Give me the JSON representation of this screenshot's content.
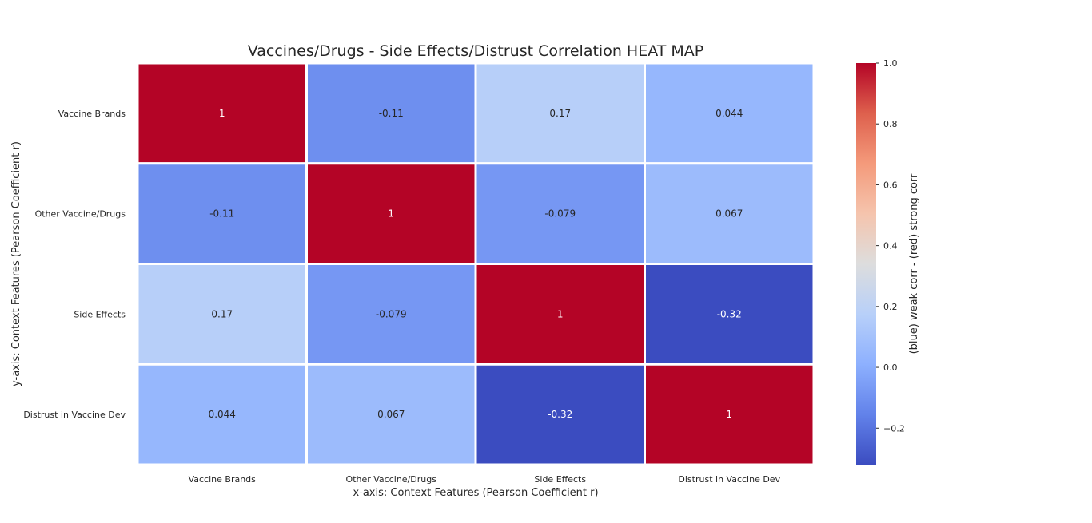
{
  "chart_data": {
    "type": "heatmap",
    "title": "Vaccines/Drugs - Side Effects/Distrust Correlation HEAT MAP",
    "xlabel": "x-axis: Context Features (Pearson Coefficient r)",
    "ylabel": "y-axis: Context Features (Pearson Coefficient r)",
    "x_categories": [
      "Vaccine Brands",
      "Other Vaccine/Drugs",
      "Side Effects",
      "Distrust in Vaccine Dev"
    ],
    "y_categories": [
      "Vaccine Brands",
      "Other Vaccine/Drugs",
      "Side Effects",
      "Distrust in Vaccine Dev"
    ],
    "values": [
      [
        1,
        -0.11,
        0.17,
        0.044
      ],
      [
        -0.11,
        1,
        -0.079,
        0.067
      ],
      [
        0.17,
        -0.079,
        1,
        -0.32
      ],
      [
        0.044,
        0.067,
        -0.32,
        1
      ]
    ],
    "value_labels": [
      [
        "1",
        "-0.11",
        "0.17",
        "0.044"
      ],
      [
        "-0.11",
        "1",
        "-0.079",
        "0.067"
      ],
      [
        "0.17",
        "-0.079",
        "1",
        "-0.32"
      ],
      [
        "0.044",
        "0.067",
        "-0.32",
        "1"
      ]
    ],
    "colormap": "coolwarm",
    "colorbar": {
      "label": "(blue) weak corr - (red) strong corr",
      "range": [
        -0.32,
        1.0
      ],
      "ticks": [
        1.0,
        0.8,
        0.6,
        0.4,
        0.2,
        0.0,
        -0.2
      ],
      "tick_labels": [
        "1.0",
        "0.8",
        "0.6",
        "0.4",
        "0.2",
        "0.0",
        "−0.2"
      ]
    }
  }
}
